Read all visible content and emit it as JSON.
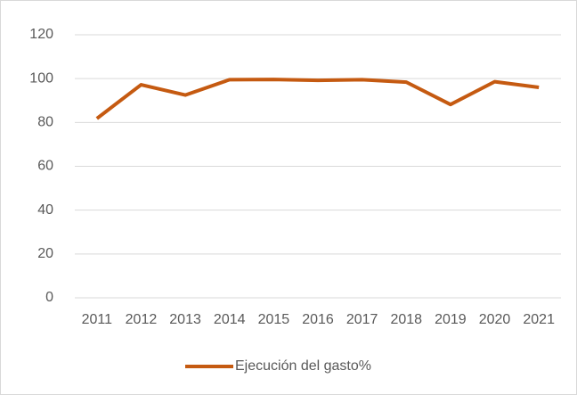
{
  "chart_data": {
    "type": "line",
    "categories": [
      "2011",
      "2012",
      "2013",
      "2014",
      "2015",
      "2016",
      "2017",
      "2018",
      "2019",
      "2020",
      "2021"
    ],
    "series": [
      {
        "name": "Ejecución del gasto%",
        "color": "#c55a11",
        "values": [
          81.8,
          97.2,
          92.5,
          99.5,
          99.6,
          99.2,
          99.5,
          98.4,
          88.2,
          98.6,
          96.0
        ]
      }
    ],
    "ylim": [
      0,
      120
    ],
    "yticks": [
      0,
      20,
      40,
      60,
      80,
      100,
      120
    ],
    "grid": true,
    "legend": "bottom"
  }
}
